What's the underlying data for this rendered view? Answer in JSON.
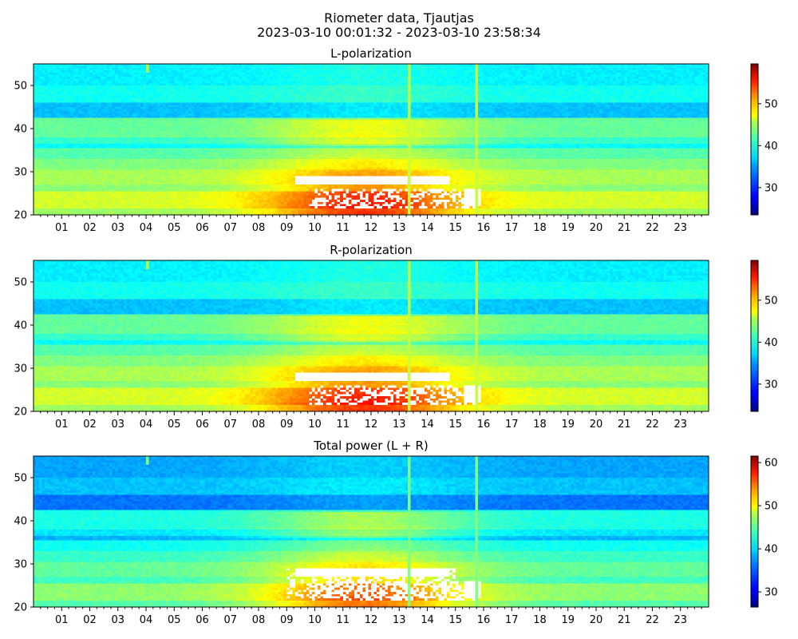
{
  "figure": {
    "title": "Riometer data, Tjautjas",
    "subtitle": "2023-03-10 00:01:32 - 2023-03-10 23:58:34"
  },
  "chart_data": [
    {
      "type": "heatmap",
      "title": "L-polarization",
      "xlabel": "",
      "ylabel": "",
      "x_ticks": [
        "01",
        "02",
        "03",
        "04",
        "05",
        "06",
        "07",
        "08",
        "09",
        "10",
        "11",
        "12",
        "13",
        "14",
        "15",
        "16",
        "17",
        "18",
        "19",
        "20",
        "21",
        "22",
        "23"
      ],
      "x_range_hours": [
        0,
        24
      ],
      "y_ticks": [
        20,
        30,
        40,
        50
      ],
      "ylim": [
        20,
        55
      ],
      "colorbar": {
        "ticks": [
          30,
          40,
          50
        ],
        "vmin": 23.5,
        "vmax": 59.5,
        "colormap": "jet"
      },
      "saturated_color": "#ffffff",
      "grid": false
    },
    {
      "type": "heatmap",
      "title": "R-polarization",
      "xlabel": "",
      "ylabel": "",
      "x_ticks": [
        "01",
        "02",
        "03",
        "04",
        "05",
        "06",
        "07",
        "08",
        "09",
        "10",
        "11",
        "12",
        "13",
        "14",
        "15",
        "16",
        "17",
        "18",
        "19",
        "20",
        "21",
        "22",
        "23"
      ],
      "x_range_hours": [
        0,
        24
      ],
      "y_ticks": [
        20,
        30,
        40,
        50
      ],
      "ylim": [
        20,
        55
      ],
      "colorbar": {
        "ticks": [
          30,
          40,
          50
        ],
        "vmin": 23.5,
        "vmax": 59.5,
        "colormap": "jet"
      },
      "saturated_color": "#ffffff",
      "grid": false
    },
    {
      "type": "heatmap",
      "title": "Total power (L + R)",
      "xlabel": "",
      "ylabel": "",
      "x_ticks": [
        "01",
        "02",
        "03",
        "04",
        "05",
        "06",
        "07",
        "08",
        "09",
        "10",
        "11",
        "12",
        "13",
        "14",
        "15",
        "16",
        "17",
        "18",
        "19",
        "20",
        "21",
        "22",
        "23"
      ],
      "x_range_hours": [
        0,
        24
      ],
      "y_ticks": [
        20,
        30,
        40,
        50
      ],
      "ylim": [
        20,
        55
      ],
      "colorbar": {
        "ticks": [
          30,
          40,
          50,
          60
        ],
        "vmin": 26.5,
        "vmax": 61.5,
        "colormap": "jet"
      },
      "saturated_color": "#ffffff",
      "grid": false
    }
  ]
}
